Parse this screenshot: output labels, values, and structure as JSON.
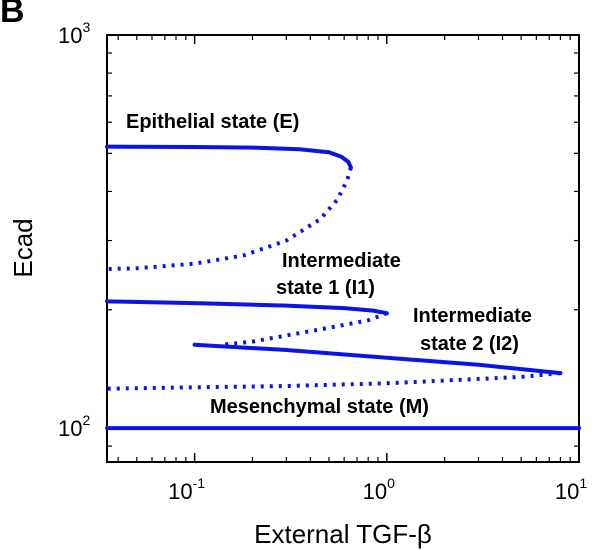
{
  "chart_data": {
    "type": "line",
    "panel_label": "B",
    "xlabel": "External TGF-β",
    "ylabel": "Ecad",
    "xscale": "log",
    "yscale": "log",
    "xlim": [
      0.035,
      10
    ],
    "ylim": [
      82,
      1000
    ],
    "x_ticks": [
      {
        "value": 0.1,
        "base": "10",
        "exp": "-1"
      },
      {
        "value": 1,
        "base": "10",
        "exp": "0"
      },
      {
        "value": 10,
        "base": "10",
        "exp": "1"
      }
    ],
    "y_ticks": [
      {
        "value": 100,
        "base": "10",
        "exp": "2"
      },
      {
        "value": 1000,
        "base": "10",
        "exp": "3"
      }
    ],
    "grid": false,
    "line_color": "#0a14e6",
    "series": [
      {
        "style": "solid",
        "x": [
          0.035,
          0.1,
          0.2,
          0.35,
          0.5,
          0.58,
          0.63,
          0.65
        ],
        "y": [
          520,
          519,
          517,
          512,
          503,
          490,
          476,
          460
        ]
      },
      {
        "style": "dotted",
        "x": [
          0.65,
          0.62,
          0.55,
          0.45,
          0.3,
          0.18,
          0.1,
          0.05,
          0.035
        ],
        "y": [
          460,
          425,
          380,
          340,
          300,
          275,
          262,
          255,
          254
        ]
      },
      {
        "style": "solid",
        "x": [
          0.035,
          0.1,
          0.3,
          0.6,
          0.85,
          1.0
        ],
        "y": [
          210,
          208,
          205,
          202,
          199,
          196
        ]
      },
      {
        "style": "dotted",
        "x": [
          1.0,
          0.8,
          0.5,
          0.3,
          0.2,
          0.14
        ],
        "y": [
          196,
          188,
          180,
          172,
          166,
          163
        ]
      },
      {
        "style": "solid",
        "x": [
          0.1,
          0.3,
          1.0,
          3.0,
          8.0
        ],
        "y": [
          163,
          158,
          151,
          145,
          138
        ]
      },
      {
        "style": "dotted",
        "x": [
          8.0,
          5.0,
          1.0,
          0.3,
          0.1,
          0.035
        ],
        "y": [
          138,
          135,
          130,
          128,
          127,
          126
        ]
      },
      {
        "style": "solid",
        "x": [
          0.035,
          10
        ],
        "y": [
          100,
          100
        ]
      }
    ],
    "annotations": [
      {
        "text": "Epithelial state (E)"
      },
      {
        "text": "Intermediate"
      },
      {
        "text": "state 1 (I1)"
      },
      {
        "text": "Intermediate"
      },
      {
        "text": "state 2 (I2)"
      },
      {
        "text": "Mesenchymal state (M)"
      }
    ]
  }
}
